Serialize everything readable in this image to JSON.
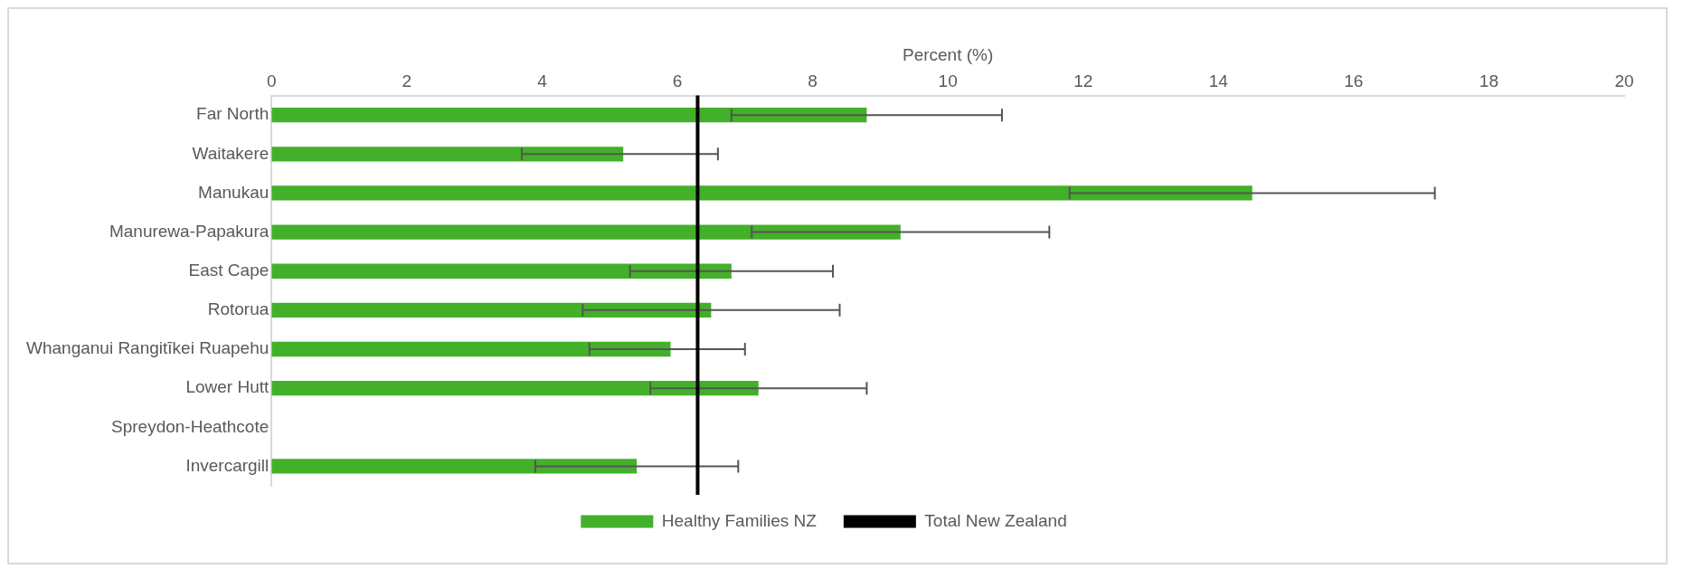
{
  "chart_data": {
    "type": "bar",
    "orientation": "horizontal",
    "xlabel": "Percent (%)",
    "categories": [
      "Far North",
      "Waitakere",
      "Manukau",
      "Manurewa-Papakura",
      "East Cape",
      "Rotorua",
      "Whanganui Rangitīkei Ruapehu",
      "Lower Hutt",
      "Spreydon-Heathcote",
      "Invercargill"
    ],
    "series": [
      {
        "name": "Healthy Families NZ",
        "color": "#43b02a",
        "values": [
          8.8,
          5.2,
          14.5,
          9.3,
          6.8,
          6.5,
          5.9,
          7.2,
          null,
          5.4
        ],
        "errors": [
          [
            6.8,
            10.8
          ],
          [
            3.7,
            6.6
          ],
          [
            11.8,
            17.2
          ],
          [
            7.1,
            11.5
          ],
          [
            5.3,
            8.3
          ],
          [
            4.6,
            8.4
          ],
          [
            4.7,
            7.0
          ],
          [
            5.6,
            8.8
          ],
          null,
          [
            3.9,
            6.9
          ]
        ]
      }
    ],
    "ref_lines": [
      {
        "axis": "x",
        "value": 6.3,
        "label": "Total New Zealand",
        "color": "#000000"
      }
    ],
    "xlim": [
      0,
      20
    ],
    "xticks": [
      0,
      2,
      4,
      6,
      8,
      10,
      12,
      14,
      16,
      18,
      20
    ],
    "grid": false,
    "legend": "bottom"
  }
}
